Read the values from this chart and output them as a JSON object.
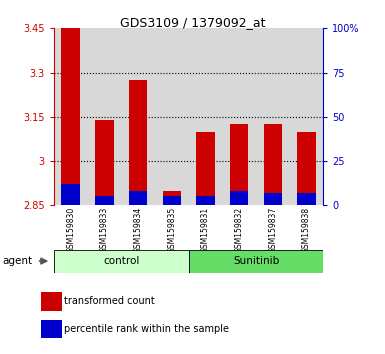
{
  "title": "GDS3109 / 1379092_at",
  "samples": [
    "GSM159830",
    "GSM159833",
    "GSM159834",
    "GSM159835",
    "GSM159831",
    "GSM159832",
    "GSM159837",
    "GSM159838"
  ],
  "groups": [
    "control",
    "control",
    "control",
    "control",
    "Sunitinib",
    "Sunitinib",
    "Sunitinib",
    "Sunitinib"
  ],
  "transformed_count": [
    3.46,
    3.14,
    3.275,
    2.9,
    3.1,
    3.125,
    3.125,
    3.1
  ],
  "percentile_rank": [
    12,
    5,
    8,
    5,
    5,
    8,
    7,
    7
  ],
  "base_value": 2.85,
  "ylim_left": [
    2.85,
    3.45
  ],
  "ylim_right": [
    0,
    100
  ],
  "yticks_left": [
    2.85,
    3.0,
    3.15,
    3.3,
    3.45
  ],
  "ytick_labels_left": [
    "2.85",
    "3",
    "3.15",
    "3.3",
    "3.45"
  ],
  "yticks_right": [
    0,
    25,
    50,
    75,
    100
  ],
  "ytick_labels_right": [
    "0",
    "25",
    "50",
    "75",
    "100%"
  ],
  "left_color": "#cc0000",
  "blue_color": "#0000cc",
  "control_bg_light": "#ccffcc",
  "sunitinib_bg_dark": "#66dd66",
  "axis_bg": "#d8d8d8",
  "grid_color": "#000000",
  "bar_width": 0.55,
  "legend_items": [
    "transformed count",
    "percentile rank within the sample"
  ],
  "group_labels": [
    "control",
    "Sunitinib"
  ],
  "agent_label": "agent"
}
